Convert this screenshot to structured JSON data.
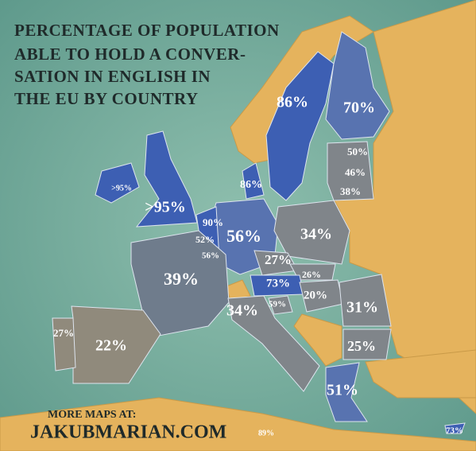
{
  "title": [
    "PERCENTAGE OF POPULATION",
    "ABLE TO HOLD A CONVER-",
    "SATION IN ENGLISH IN",
    "THE EU BY COUNTRY"
  ],
  "labels": [
    "86%",
    "70%",
    "50%",
    "46%",
    "38%",
    ">95%",
    "86%",
    ">95%",
    "90%",
    "52%",
    "56%",
    "56%",
    "34%",
    "27%",
    "26%",
    "73%",
    "39%",
    "20%",
    "59%",
    "31%",
    "34%",
    "27%",
    "22%",
    "25%",
    "51%",
    "89%",
    "73%"
  ],
  "footer": {
    "prompt": "MORE MAPS AT:",
    "site": "JAKUBMARIAN.COM"
  }
}
